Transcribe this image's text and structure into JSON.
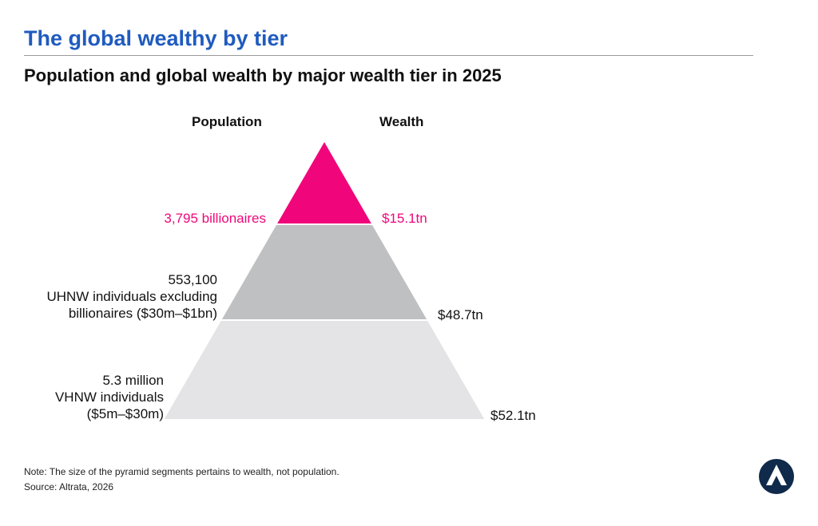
{
  "header": {
    "title": "The global wealthy by tier",
    "subtitle": "Population and global wealth by major wealth tier in 2025"
  },
  "columns": {
    "population": "Population",
    "wealth": "Wealth"
  },
  "colors": {
    "title": "#1f5bbf",
    "billionaires": "#f0067a",
    "uhnw": "#bfc0c2",
    "vhnw": "#e4e4e6",
    "logo": "#0f2a4a"
  },
  "chart_data": {
    "type": "pyramid",
    "title": "Population and global wealth by major wealth tier in 2025",
    "tiers": [
      {
        "name": "billionaires",
        "population_label": [
          "3,795 billionaires"
        ],
        "population": 3795,
        "wealth_label": "$15.1tn",
        "wealth_tn": 15.1,
        "color": "#f0067a"
      },
      {
        "name": "UHNW individuals excluding billionaires ($30m–$1bn)",
        "population_label": [
          "553,100",
          "UHNW individuals excluding",
          "billionaires ($30m–$1bn)"
        ],
        "population": 553100,
        "wealth_label": "$48.7tn",
        "wealth_tn": 48.7,
        "color": "#bfc0c2"
      },
      {
        "name": "VHNW individuals ($5m–$30m)",
        "population_label": [
          "5.3 million",
          "VHNW individuals",
          "($5m–$30m)"
        ],
        "population": 5300000,
        "wealth_label": "$52.1tn",
        "wealth_tn": 52.1,
        "color": "#e4e4e6"
      }
    ]
  },
  "footer": {
    "note": "Note: The size of the pyramid segments pertains to wealth, not population.",
    "source": "Source: Altrata, 2026"
  },
  "logo": {
    "icon": "altrata-logo-icon"
  }
}
